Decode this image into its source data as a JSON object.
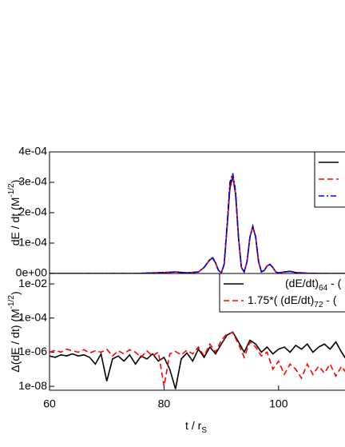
{
  "chart_data": [
    {
      "type": "line",
      "ylabel": [
        "dE / dt (M",
        "-1/2",
        ")"
      ],
      "xlim": [
        60,
        111.6
      ],
      "ylim": [
        0,
        0.0004
      ],
      "yticks": [
        {
          "value": 0,
          "label": "0e+00"
        },
        {
          "value": 0.0001,
          "label": "1e-04"
        },
        {
          "value": 0.0002,
          "label": "2e-04"
        },
        {
          "value": 0.0003,
          "label": "3e-04"
        },
        {
          "value": 0.0004,
          "label": "4e-04"
        }
      ],
      "legend": "upper right",
      "x": [
        60,
        70,
        75,
        80,
        82,
        84,
        86,
        87,
        88,
        88.5,
        89,
        89.5,
        90,
        90.5,
        91,
        91.5,
        92,
        92.5,
        93,
        93.5,
        94,
        94.5,
        95,
        95.5,
        96,
        96.5,
        97,
        97.5,
        98,
        98.5,
        99,
        99.5,
        100,
        101,
        102,
        103,
        105,
        108,
        112
      ],
      "series": [
        {
          "color": "#000000",
          "dash": "solid",
          "values": [
            0,
            0,
            0,
            3e-06,
            5e-06,
            2e-06,
            5e-06,
            2e-05,
            4.5e-05,
            5e-05,
            3.5e-05,
            1e-05,
            2e-06,
            3e-05,
            0.00015,
            0.00028,
            0.00032,
            0.00026,
            0.00012,
            2e-05,
            5e-06,
            4e-05,
            0.00012,
            0.000155,
            0.00012,
            4e-05,
            5e-06,
            1e-05,
            2.5e-05,
            3e-05,
            2e-05,
            5e-06,
            2e-06,
            5e-06,
            7e-06,
            3e-06,
            1e-06,
            0,
            0
          ]
        },
        {
          "color": "#ff0000",
          "dash": "dashed",
          "values": [
            0,
            0,
            0,
            3e-06,
            5e-06,
            2e-06,
            5e-06,
            2e-05,
            4.6e-05,
            5e-05,
            3.4e-05,
            1e-05,
            2e-06,
            3e-05,
            0.00015,
            0.00029,
            0.000325,
            0.00026,
            0.00012,
            2e-05,
            5e-06,
            4e-05,
            0.00012,
            0.000153,
            0.00012,
            4e-05,
            5e-06,
            1e-05,
            2.5e-05,
            3e-05,
            2e-05,
            5e-06,
            2e-06,
            5e-06,
            7e-06,
            3e-06,
            1e-06,
            0,
            0
          ]
        },
        {
          "color": "#0000ff",
          "dash": "dashdot",
          "values": [
            0,
            0,
            0,
            3e-06,
            5e-06,
            2e-06,
            5e-06,
            2e-05,
            4.7e-05,
            5.2e-05,
            3.5e-05,
            1e-05,
            2e-06,
            3e-05,
            0.00016,
            0.0003,
            0.00033,
            0.00027,
            0.00012,
            2e-05,
            5e-06,
            4e-05,
            0.00012,
            0.000156,
            0.00012,
            4e-05,
            5e-06,
            1e-05,
            2.5e-05,
            3e-05,
            2e-05,
            5e-06,
            2e-06,
            5e-06,
            7e-06,
            3e-06,
            1e-06,
            0,
            0
          ]
        }
      ]
    },
    {
      "type": "line",
      "ylabel": [
        "Δ(dE / dt) (M",
        "-1/2",
        ")"
      ],
      "xlabel": [
        "t / r",
        "S"
      ],
      "log": true,
      "xlim": [
        60,
        111.6
      ],
      "xticks": [
        60,
        80,
        100
      ],
      "ylim": [
        5.9e-09,
        0.041
      ],
      "yticks": [
        {
          "value": 1e-08,
          "label": "1e-08"
        },
        {
          "value": 1e-06,
          "label": "1e-06"
        },
        {
          "value": 0.0001,
          "label": "1e-04"
        },
        {
          "value": 0.01,
          "label": "1e-02"
        }
      ],
      "legend": "upper right",
      "x": [
        60,
        61,
        62,
        63,
        64,
        65,
        66,
        67,
        68,
        69,
        70,
        71,
        72,
        73,
        74,
        75,
        76,
        77,
        78,
        79,
        80,
        81,
        82,
        83,
        84,
        85,
        86,
        87,
        88,
        89,
        90,
        91,
        92,
        93,
        94,
        95,
        96,
        97,
        98,
        99,
        100,
        101,
        102,
        103,
        104,
        105,
        106,
        107,
        108,
        109,
        110,
        111,
        112
      ],
      "series": [
        {
          "name": [
            "(dE/dt)",
            "64",
            " - ("
          ],
          "color": "#000000",
          "dash": "solid",
          "values": [
            6e-07,
            5e-07,
            7e-07,
            6e-07,
            8e-07,
            6e-07,
            7e-07,
            5e-07,
            2e-07,
            8e-07,
            2e-08,
            4e-07,
            6e-07,
            3e-07,
            7e-07,
            2e-07,
            6e-07,
            4e-07,
            8e-07,
            3e-07,
            5e-07,
            1e-07,
            7e-09,
            4e-07,
            9e-07,
            3e-07,
            1.5e-06,
            5e-07,
            2e-06,
            8e-07,
            3e-06,
            1e-05,
            1.5e-05,
            4e-06,
            1e-06,
            5e-06,
            3e-06,
            1e-06,
            2e-06,
            8e-07,
            1.5e-06,
            2e-06,
            1e-06,
            2.5e-06,
            1.5e-06,
            3e-06,
            1e-06,
            2e-06,
            3e-06,
            1.5e-06,
            4e-06,
            1e-06,
            3e-07
          ]
        },
        {
          "name": [
            "1.75*( (dE/dt)",
            "72",
            " - ("
          ],
          "color": "#ff0000",
          "dash": "dashed",
          "values": [
            1e-06,
            1.3e-06,
            1e-06,
            1.5e-06,
            1.2e-06,
            1e-06,
            1.4e-06,
            9e-07,
            1.2e-06,
            1e-06,
            1.5e-06,
            6e-07,
            1.2e-06,
            8e-07,
            1.4e-06,
            1e-06,
            5e-07,
            1.2e-06,
            6e-07,
            1e-06,
            1e-08,
            8e-07,
            1.1e-06,
            7e-07,
            1.3e-06,
            8e-07,
            2e-06,
            6e-07,
            3e-06,
            1e-06,
            5e-06,
            1.2e-05,
            1.4e-05,
            3e-06,
            5e-07,
            4e-06,
            2e-06,
            6e-07,
            1e-06,
            1e-07,
            3e-07,
            5e-08,
            2e-07,
            1e-07,
            3e-08,
            2e-07,
            5e-08,
            1.5e-07,
            6e-08,
            2e-07,
            4e-08,
            1.5e-07,
            5e-08
          ]
        }
      ]
    }
  ]
}
